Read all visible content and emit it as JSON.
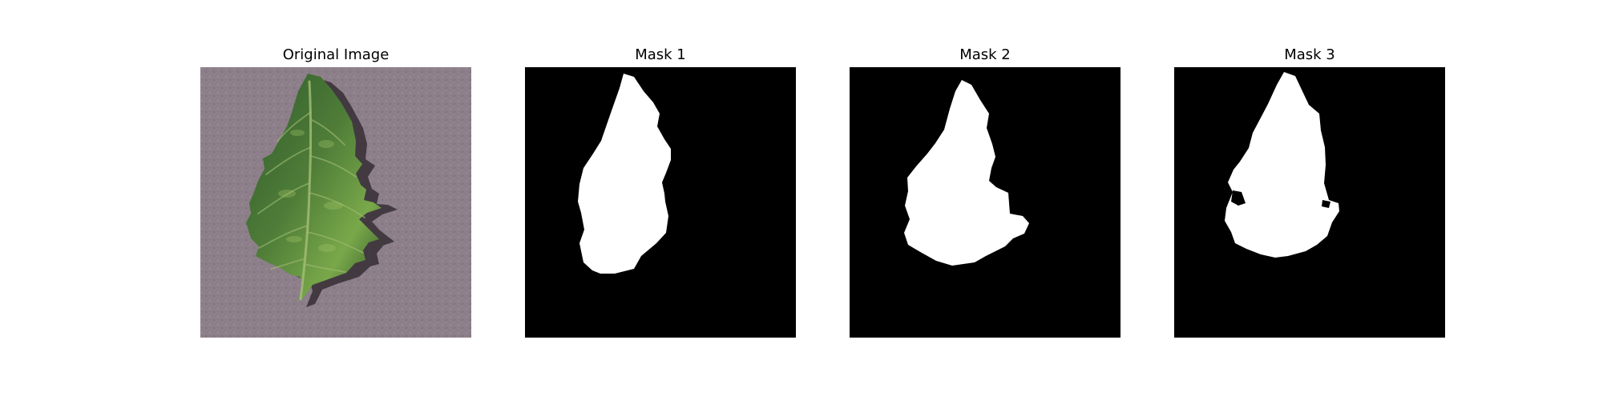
{
  "panels": [
    {
      "title": "Original Image",
      "kind": "photo"
    },
    {
      "title": "Mask 1",
      "kind": "mask"
    },
    {
      "title": "Mask 2",
      "kind": "mask"
    },
    {
      "title": "Mask 3",
      "kind": "mask"
    }
  ],
  "colors": {
    "background": "#ffffff",
    "mask_foreground": "#ffffff",
    "mask_background": "#000000",
    "fabric": "#8d7f89",
    "leaf_dark": "#2f5a2c",
    "leaf_light": "#79a84a",
    "leaf_shadow": "#332b31"
  }
}
